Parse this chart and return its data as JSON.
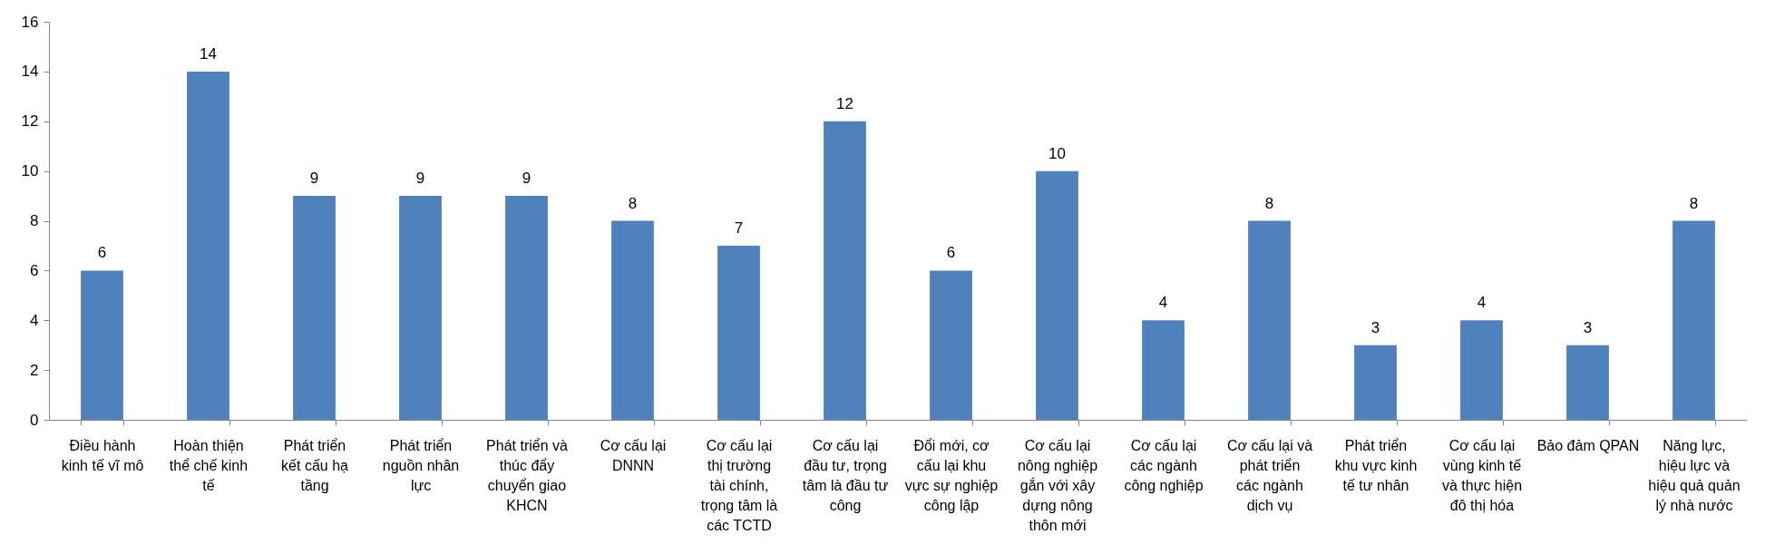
{
  "chart_data": {
    "type": "bar",
    "categories": [
      "Điều hành kinh tế vĩ mô",
      "Hoàn thiện thể chế kinh tế",
      "Phát triển kết cấu hạ tầng",
      "Phát triển nguồn nhân lực",
      "Phát triển và thúc đẩy chuyển giao KHCN",
      "Cơ cấu lại DNNN",
      "Cơ cấu lại thị trường tài chính, trọng tâm là các TCTD",
      "Cơ cấu lại đầu tư, trọng tâm là đầu tư công",
      "Đổi mới, cơ cấu lại khu vực sự nghiệp công lập",
      "Cơ cấu lại nông nghiệp gắn với xây dựng nông thôn mới",
      "Cơ cấu lại các ngành công nghiệp",
      "Cơ cấu lại và phát triển các ngành dịch vụ",
      "Phát triển khu vực kinh tế tư nhân",
      "Cơ cấu lại vùng kinh tế và thực hiện đô thị hóa",
      "Bảo đảm QPAN",
      "Năng lực, hiệu lực và hiệu quả quản lý nhà nước"
    ],
    "values": [
      6,
      14,
      9,
      9,
      9,
      8,
      7,
      12,
      6,
      10,
      4,
      8,
      3,
      4,
      3,
      8
    ],
    "color": "#4f81bd",
    "ylim": [
      0,
      16
    ],
    "yticks": [
      0,
      2,
      4,
      6,
      8,
      10,
      12,
      14,
      16
    ],
    "grid": false,
    "data_labels": true
  }
}
